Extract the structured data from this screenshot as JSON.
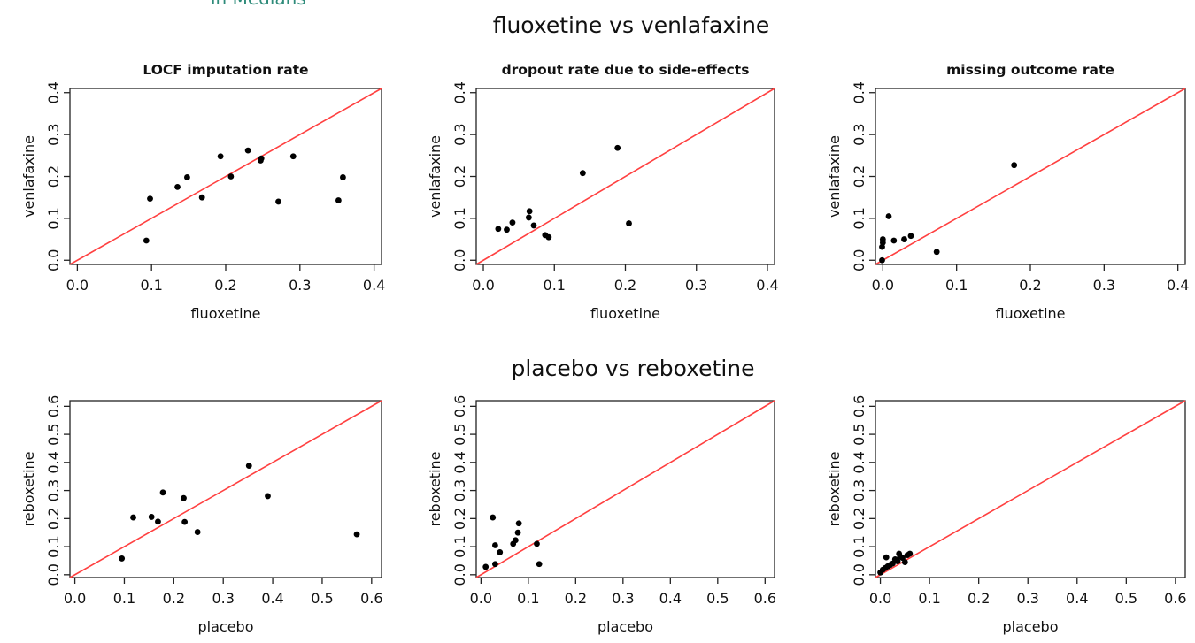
{
  "header_fragment": "in Medians",
  "chart_data": [
    {
      "type": "scatter",
      "group_title": "fluoxetine vs venlafaxine",
      "title": "LOCF imputation rate",
      "xlabel": "fluoxetine",
      "ylabel": "venlafaxine",
      "xlim": [
        -0.01,
        0.41
      ],
      "ylim": [
        -0.01,
        0.41
      ],
      "xticks": [
        "0.0",
        "0.1",
        "0.2",
        "0.3",
        "0.4"
      ],
      "yticks": [
        "0.0",
        "0.1",
        "0.2",
        "0.3",
        "0.4"
      ],
      "reference_line": "y = x",
      "reference_color": "#ff4040",
      "points": [
        [
          0.093,
          0.047
        ],
        [
          0.098,
          0.147
        ],
        [
          0.135,
          0.175
        ],
        [
          0.148,
          0.198
        ],
        [
          0.168,
          0.15
        ],
        [
          0.193,
          0.248
        ],
        [
          0.207,
          0.2
        ],
        [
          0.23,
          0.262
        ],
        [
          0.247,
          0.238
        ],
        [
          0.248,
          0.243
        ],
        [
          0.271,
          0.14
        ],
        [
          0.291,
          0.248
        ],
        [
          0.352,
          0.143
        ],
        [
          0.358,
          0.198
        ]
      ]
    },
    {
      "type": "scatter",
      "group_title": "fluoxetine vs venlafaxine",
      "title": "dropout rate due to side-effects",
      "xlabel": "fluoxetine",
      "ylabel": "venlafaxine",
      "xlim": [
        -0.01,
        0.41
      ],
      "ylim": [
        -0.01,
        0.41
      ],
      "xticks": [
        "0.0",
        "0.1",
        "0.2",
        "0.3",
        "0.4"
      ],
      "yticks": [
        "0.0",
        "0.1",
        "0.2",
        "0.3",
        "0.4"
      ],
      "reference_line": "y = x",
      "reference_color": "#ff4040",
      "points": [
        [
          0.021,
          0.075
        ],
        [
          0.033,
          0.073
        ],
        [
          0.041,
          0.09
        ],
        [
          0.065,
          0.117
        ],
        [
          0.064,
          0.102
        ],
        [
          0.071,
          0.083
        ],
        [
          0.087,
          0.06
        ],
        [
          0.092,
          0.055
        ],
        [
          0.14,
          0.208
        ],
        [
          0.189,
          0.268
        ],
        [
          0.205,
          0.088
        ]
      ]
    },
    {
      "type": "scatter",
      "group_title": "fluoxetine vs venlafaxine",
      "title": "missing outcome rate",
      "xlabel": "fluoxetine",
      "ylabel": "venlafaxine",
      "xlim": [
        -0.01,
        0.41
      ],
      "ylim": [
        -0.01,
        0.41
      ],
      "xticks": [
        "0.0",
        "0.1",
        "0.2",
        "0.3",
        "0.4"
      ],
      "yticks": [
        "0.0",
        "0.1",
        "0.2",
        "0.3",
        "0.4"
      ],
      "reference_line": "y = x",
      "reference_color": "#ff4040",
      "points": [
        [
          -0.001,
          0.0
        ],
        [
          0.0,
          0.05
        ],
        [
          0.0,
          0.042
        ],
        [
          -0.001,
          0.032
        ],
        [
          0.008,
          0.105
        ],
        [
          0.015,
          0.047
        ],
        [
          0.029,
          0.05
        ],
        [
          0.038,
          0.058
        ],
        [
          0.073,
          0.02
        ],
        [
          0.178,
          0.227
        ]
      ]
    },
    {
      "type": "scatter",
      "group_title": "placebo vs reboxetine",
      "title": "",
      "xlabel": "placebo",
      "ylabel": "reboxetine",
      "xlim": [
        -0.01,
        0.62
      ],
      "ylim": [
        -0.01,
        0.62
      ],
      "xticks": [
        "0.0",
        "0.1",
        "0.2",
        "0.3",
        "0.4",
        "0.5",
        "0.6"
      ],
      "yticks": [
        "0.0",
        "0.1",
        "0.2",
        "0.3",
        "0.4",
        "0.5",
        "0.6"
      ],
      "reference_line": "y = x",
      "reference_color": "#ff4040",
      "points": [
        [
          0.095,
          0.058
        ],
        [
          0.118,
          0.204
        ],
        [
          0.155,
          0.206
        ],
        [
          0.168,
          0.189
        ],
        [
          0.178,
          0.293
        ],
        [
          0.22,
          0.273
        ],
        [
          0.222,
          0.188
        ],
        [
          0.248,
          0.152
        ],
        [
          0.352,
          0.388
        ],
        [
          0.39,
          0.28
        ],
        [
          0.57,
          0.144
        ]
      ]
    },
    {
      "type": "scatter",
      "group_title": "placebo vs reboxetine",
      "title": "",
      "xlabel": "placebo",
      "ylabel": "reboxetine",
      "xlim": [
        -0.01,
        0.62
      ],
      "ylim": [
        -0.01,
        0.62
      ],
      "xticks": [
        "0.0",
        "0.1",
        "0.2",
        "0.3",
        "0.4",
        "0.5",
        "0.6"
      ],
      "yticks": [
        "0.0",
        "0.1",
        "0.2",
        "0.3",
        "0.4",
        "0.5",
        "0.6"
      ],
      "reference_line": "y = x",
      "reference_color": "#ff4040",
      "points": [
        [
          0.01,
          0.028
        ],
        [
          0.025,
          0.204
        ],
        [
          0.03,
          0.105
        ],
        [
          0.03,
          0.038
        ],
        [
          0.04,
          0.08
        ],
        [
          0.068,
          0.11
        ],
        [
          0.073,
          0.123
        ],
        [
          0.078,
          0.15
        ],
        [
          0.08,
          0.183
        ],
        [
          0.118,
          0.11
        ],
        [
          0.123,
          0.038
        ]
      ]
    },
    {
      "type": "scatter",
      "group_title": "placebo vs reboxetine",
      "title": "",
      "xlabel": "placebo",
      "ylabel": "reboxetine",
      "xlim": [
        -0.01,
        0.62
      ],
      "ylim": [
        -0.01,
        0.62
      ],
      "xticks": [
        "0.0",
        "0.1",
        "0.2",
        "0.3",
        "0.4",
        "0.5",
        "0.6"
      ],
      "yticks": [
        "0.0",
        "0.1",
        "0.2",
        "0.3",
        "0.4",
        "0.5",
        "0.6"
      ],
      "reference_line": "y = x",
      "reference_color": "#ff4040",
      "points": [
        [
          0.0,
          0.008
        ],
        [
          0.005,
          0.018
        ],
        [
          0.01,
          0.024
        ],
        [
          0.012,
          0.062
        ],
        [
          0.015,
          0.03
        ],
        [
          0.02,
          0.035
        ],
        [
          0.025,
          0.04
        ],
        [
          0.03,
          0.055
        ],
        [
          0.035,
          0.048
        ],
        [
          0.038,
          0.075
        ],
        [
          0.04,
          0.065
        ],
        [
          0.045,
          0.06
        ],
        [
          0.05,
          0.045
        ],
        [
          0.055,
          0.07
        ],
        [
          0.06,
          0.075
        ]
      ]
    }
  ]
}
